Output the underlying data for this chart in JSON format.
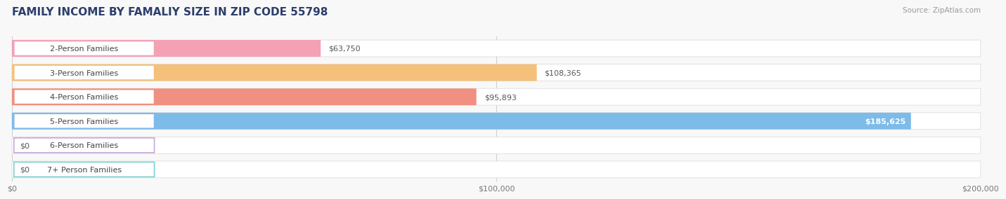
{
  "title": "FAMILY INCOME BY FAMALIY SIZE IN ZIP CODE 55798",
  "source": "Source: ZipAtlas.com",
  "categories": [
    "2-Person Families",
    "3-Person Families",
    "4-Person Families",
    "5-Person Families",
    "6-Person Families",
    "7+ Person Families"
  ],
  "values": [
    63750,
    108365,
    95893,
    185625,
    0,
    0
  ],
  "bar_colors": [
    "#F4A0B5",
    "#F5C07A",
    "#F09080",
    "#7DBBE8",
    "#C8A8D8",
    "#80D0D0"
  ],
  "bg_bar_color": "#EBEBEB",
  "x_max": 200000,
  "x_ticks": [
    0,
    100000,
    200000
  ],
  "x_tick_labels": [
    "$0",
    "$100,000",
    "$200,000"
  ],
  "page_bg": "#F8F8F8",
  "title_color": "#2C3E6B",
  "source_color": "#999999",
  "label_fontsize": 8.0,
  "title_fontsize": 11,
  "value_labels": [
    "$63,750",
    "$108,365",
    "$95,893",
    "$185,625",
    "$0",
    "$0"
  ],
  "value_label_inside": [
    false,
    false,
    false,
    true,
    false,
    false
  ]
}
